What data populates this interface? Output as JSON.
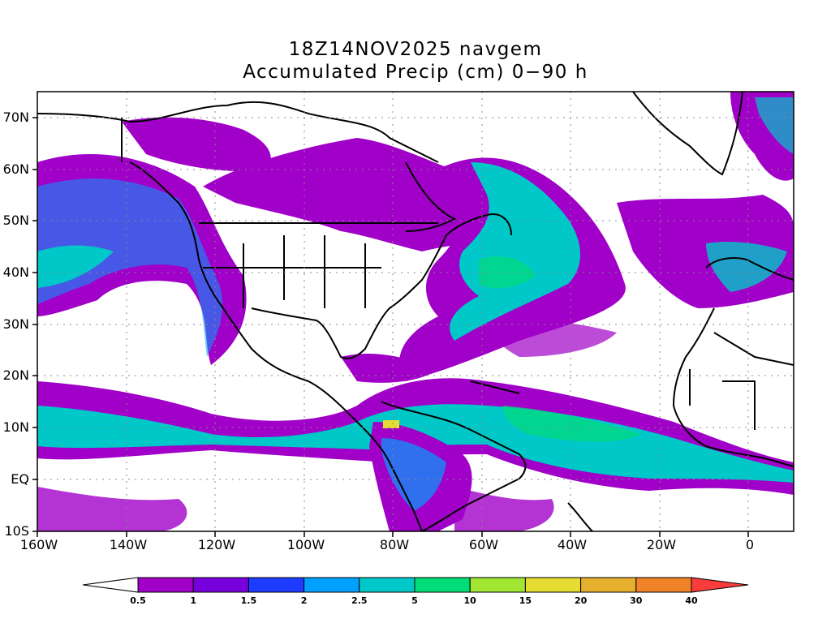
{
  "title": {
    "line1": "18Z14NOV2025 navgem",
    "line2": "Accumulated Precip (cm) 0−90 h"
  },
  "map": {
    "lon_range": [
      -160,
      10
    ],
    "lat_range": [
      -10,
      75
    ],
    "gridlines": "dotted",
    "lon_labels": [
      "160W",
      "140W",
      "120W",
      "100W",
      "80W",
      "60W",
      "40W",
      "20W",
      "0"
    ],
    "lat_labels": [
      "70N",
      "60N",
      "50N",
      "40N",
      "30N",
      "20N",
      "10N",
      "EQ",
      "10S"
    ]
  },
  "colorbar": {
    "levels": [
      "0.5",
      "1",
      "1.5",
      "2",
      "2.5",
      "5",
      "10",
      "15",
      "20",
      "30",
      "40"
    ],
    "colors": [
      "#ffffff",
      "#a000c8",
      "#7800dc",
      "#1e3cff",
      "#00a0ff",
      "#00c8c8",
      "#00dc78",
      "#a0e632",
      "#e6dc32",
      "#e6af2d",
      "#f08228",
      "#fa3c3c"
    ]
  }
}
